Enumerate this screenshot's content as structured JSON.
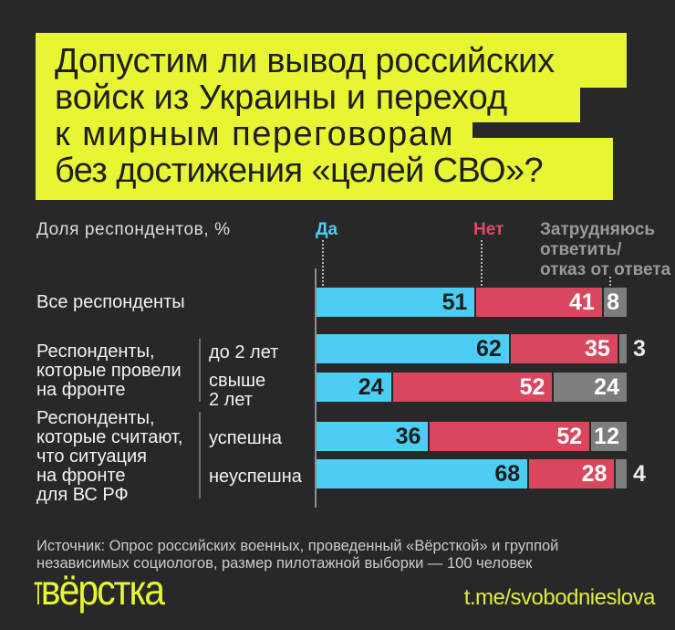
{
  "title": {
    "lines": [
      "Допустим ли вывод российских",
      "войск из Украины и переход",
      "к мирным переговорам",
      "без достижения «целей СВО»?"
    ]
  },
  "legend": {
    "share_label": "Доля респондентов, %",
    "yes_label": "Да",
    "no_label": "Нет",
    "undecided_lines": [
      "Затрудняюсь",
      "ответить/",
      "отказ от ответа"
    ]
  },
  "row_labels": {
    "all": "Все респонденты",
    "group_front_lines": [
      "Респонденты,",
      "которые провели",
      "на фронте"
    ],
    "group_front_sub1": "до 2 лет",
    "group_front_sub2_lines": [
      "свыше",
      "2 лет"
    ],
    "group_situation_lines": [
      "Респонденты,",
      "которые считают,",
      "что ситуация",
      "на фронте",
      "для ВС РФ"
    ],
    "group_situation_sub1": "успешна",
    "group_situation_sub2": "неуспешна"
  },
  "chart_data": {
    "type": "bar",
    "orientation": "horizontal",
    "stacked": true,
    "title": "Допустим ли вывод российских войск из Украины и переход к мирным переговорам без достижения «целей СВО»?",
    "xlabel": "Доля респондентов, %",
    "xlim": [
      0,
      100
    ],
    "grid": false,
    "legend_position": "top",
    "categories": [
      "Все респонденты",
      "Респонденты, которые провели на фронте — до 2 лет",
      "Респонденты, которые провели на фронте — свыше 2 лет",
      "Респонденты, которые считают, что ситуация на фронте для ВС РФ — успешна",
      "Респонденты, которые считают, что ситуация на фронте для ВС РФ — неуспешна"
    ],
    "series": [
      {
        "name": "Да",
        "color": "#4bcdf4",
        "label_color": "#1d1d1d",
        "values": [
          51,
          62,
          24,
          36,
          68
        ]
      },
      {
        "name": "Нет",
        "color": "#d9475f",
        "label_color": "#ffffff",
        "values": [
          41,
          35,
          52,
          52,
          28
        ]
      },
      {
        "name": "Затрудняюсь ответить/отказ от ответа",
        "color": "#7d7d7d",
        "label_color": "#ffffff",
        "values": [
          8,
          3,
          24,
          12,
          4
        ]
      }
    ]
  },
  "source": {
    "lines": [
      "Источник: Опрос российских военных, проведенный «Вёрсткой» и группой",
      "независимых социологов, размер пилотажной выборки — 100 человек"
    ]
  },
  "footer": {
    "logo_prefix": "т",
    "logo_text": "вёрстка",
    "link": "t.me/svobodnieslova"
  },
  "colors": {
    "background": "#282828",
    "accent_yellow": "#e8f533",
    "yes": "#4bcdf4",
    "no": "#d9475f",
    "undecided": "#7d7d7d",
    "text": "#f2f2f2",
    "muted": "#9a9a9a"
  }
}
